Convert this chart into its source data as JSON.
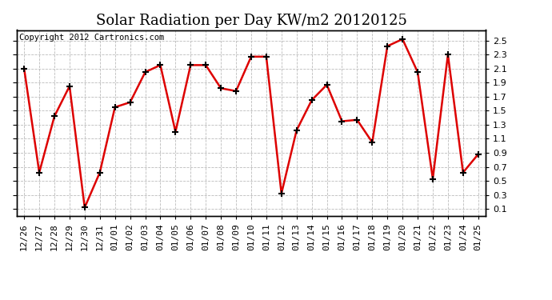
{
  "title": "Solar Radiation per Day KW/m2 20120125",
  "copyright": "Copyright 2012 Cartronics.com",
  "dates": [
    "12/26",
    "12/27",
    "12/28",
    "12/29",
    "12/30",
    "12/31",
    "01/01",
    "01/02",
    "01/03",
    "01/04",
    "01/05",
    "01/06",
    "01/07",
    "01/08",
    "01/09",
    "01/10",
    "01/11",
    "01/12",
    "01/13",
    "01/14",
    "01/15",
    "01/16",
    "01/17",
    "01/18",
    "01/19",
    "01/20",
    "01/21",
    "01/22",
    "01/23",
    "01/24",
    "01/25"
  ],
  "values": [
    2.1,
    0.62,
    1.42,
    1.85,
    0.12,
    0.62,
    1.55,
    1.62,
    2.05,
    2.15,
    1.2,
    2.15,
    2.15,
    1.82,
    1.78,
    2.27,
    2.27,
    0.32,
    1.22,
    1.65,
    1.87,
    1.35,
    1.37,
    1.05,
    2.42,
    2.52,
    2.05,
    0.53,
    2.3,
    0.62,
    0.88
  ],
  "line_color": "#dd0000",
  "marker_color": "#000000",
  "bg_color": "#ffffff",
  "grid_color": "#bbbbbb",
  "ylim_min": 0.0,
  "ylim_max": 2.65,
  "yticks": [
    0.1,
    0.3,
    0.5,
    0.7,
    0.9,
    1.1,
    1.3,
    1.5,
    1.7,
    1.9,
    2.1,
    2.3,
    2.5
  ],
  "title_fontsize": 13,
  "tick_fontsize": 8,
  "copyright_fontsize": 7.5
}
